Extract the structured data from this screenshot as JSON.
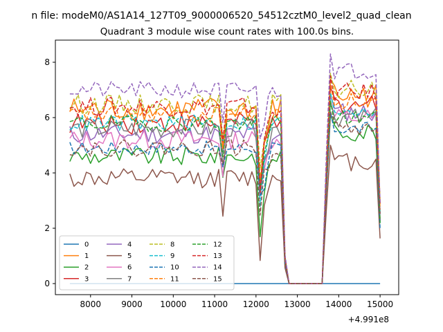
{
  "figure": {
    "suptitle": "n file: modeM0/AS1A14_127T09_9000006520_54512cztM0_level2_quad_clean"
  },
  "chart_data": {
    "type": "line",
    "title": "Quadrant 3 module wise count rates with 100.0s bins.",
    "xlabel": "",
    "ylabel": "",
    "x_offset_label": "+4.991e8",
    "xlim": [
      7150,
      15450
    ],
    "ylim": [
      -0.4,
      8.8
    ],
    "x_ticks": [
      8000,
      9000,
      10000,
      11000,
      12000,
      13000,
      14000,
      15000
    ],
    "x_tick_labels": [
      "8000",
      "9000",
      "10000",
      "11000",
      "12000",
      "13000",
      "14000",
      "15000"
    ],
    "y_ticks": [
      0,
      2,
      4,
      6,
      8
    ],
    "y_tick_labels": [
      "0",
      "2",
      "4",
      "6",
      "8"
    ],
    "grid": false,
    "legend_placement": "lower-left",
    "legend_columns": 4,
    "series": [
      {
        "name": "0",
        "color": "#1f77b4",
        "dash": "solid",
        "base1": 0.0,
        "base2": 0.0,
        "amp": 0.0
      },
      {
        "name": "1",
        "color": "#ff7f0e",
        "dash": "solid",
        "base1": 6.3,
        "base2": 6.8,
        "amp": 0.45
      },
      {
        "name": "2",
        "color": "#2ca02c",
        "dash": "solid",
        "base1": 4.6,
        "base2": 5.5,
        "amp": 0.35
      },
      {
        "name": "3",
        "color": "#d62728",
        "dash": "solid",
        "base1": 5.8,
        "base2": 6.5,
        "amp": 0.4
      },
      {
        "name": "4",
        "color": "#9467bd",
        "dash": "solid",
        "base1": 5.4,
        "base2": 6.2,
        "amp": 0.35
      },
      {
        "name": "5",
        "color": "#8c564b",
        "dash": "solid",
        "base1": 3.8,
        "base2": 4.4,
        "amp": 0.35
      },
      {
        "name": "6",
        "color": "#e377c2",
        "dash": "solid",
        "base1": 5.2,
        "base2": 6.0,
        "amp": 0.35
      },
      {
        "name": "7",
        "color": "#7f7f7f",
        "dash": "solid",
        "base1": 5.6,
        "base2": 6.0,
        "amp": 0.35
      },
      {
        "name": "8",
        "color": "#bcbd22",
        "dash": "dashed",
        "base1": 6.5,
        "base2": 7.0,
        "amp": 0.35
      },
      {
        "name": "9",
        "color": "#17becf",
        "dash": "dashed",
        "base1": 5.8,
        "base2": 6.3,
        "amp": 0.3
      },
      {
        "name": "10",
        "color": "#1f77b4",
        "dash": "dashed",
        "base1": 4.9,
        "base2": 5.6,
        "amp": 0.25
      },
      {
        "name": "11",
        "color": "#ff7f0e",
        "dash": "dashed",
        "base1": 6.1,
        "base2": 6.6,
        "amp": 0.3
      },
      {
        "name": "12",
        "color": "#2ca02c",
        "dash": "dashed",
        "base1": 5.8,
        "base2": 6.0,
        "amp": 0.3
      },
      {
        "name": "13",
        "color": "#d62728",
        "dash": "dashed",
        "base1": 6.4,
        "base2": 6.9,
        "amp": 0.35
      },
      {
        "name": "14",
        "color": "#9467bd",
        "dash": "dashed",
        "base1": 7.0,
        "base2": 7.7,
        "amp": 0.3
      },
      {
        "name": "15",
        "color": "#8c564b",
        "dash": "dashed",
        "base1": 4.9,
        "base2": 5.6,
        "amp": 0.3
      }
    ],
    "x_start": 7500,
    "x_step": 100,
    "gap_start": 12800,
    "gap_end": 13600,
    "x_end": 15000
  }
}
